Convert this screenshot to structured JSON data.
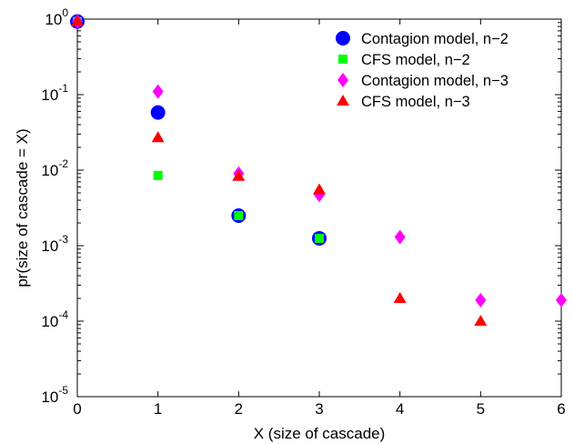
{
  "chart_data": {
    "type": "scatter",
    "title": "",
    "xlabel": "X (size of cascade)",
    "ylabel": "pr(size of cascade = X)",
    "xlim": [
      0,
      6
    ],
    "ylim": [
      1e-05,
      1
    ],
    "yscale": "log",
    "grid": false,
    "legend_position": "top-right",
    "x_ticks": [
      0,
      1,
      2,
      3,
      4,
      5,
      6
    ],
    "y_ticks": [
      {
        "base": "10",
        "exp": "0",
        "value": 1
      },
      {
        "base": "10",
        "exp": "-1",
        "value": 0.1
      },
      {
        "base": "10",
        "exp": "-2",
        "value": 0.01
      },
      {
        "base": "10",
        "exp": "-3",
        "value": 0.001
      },
      {
        "base": "10",
        "exp": "-4",
        "value": 0.0001
      },
      {
        "base": "10",
        "exp": "-5",
        "value": 1e-05
      }
    ],
    "series": [
      {
        "name": "Contagion model, n−2",
        "marker": "circle",
        "color": "#0000ff",
        "points": [
          [
            0,
            0.93
          ],
          [
            1,
            0.058
          ],
          [
            2,
            0.0025
          ],
          [
            3,
            0.00125
          ]
        ]
      },
      {
        "name": "CFS model, n−2",
        "marker": "square",
        "color": "#00ff00",
        "points": [
          [
            0,
            0.93
          ],
          [
            1,
            0.0085
          ],
          [
            2,
            0.0025
          ],
          [
            3,
            0.00125
          ]
        ]
      },
      {
        "name": "Contagion model, n−3",
        "marker": "diamond",
        "color": "#ff00ff",
        "points": [
          [
            0,
            0.93
          ],
          [
            1,
            0.11
          ],
          [
            2,
            0.009
          ],
          [
            3,
            0.0047
          ],
          [
            4,
            0.0013
          ],
          [
            5,
            0.00019
          ],
          [
            6,
            0.00019
          ]
        ]
      },
      {
        "name": "CFS model, n−3",
        "marker": "triangle",
        "color": "#ff0000",
        "points": [
          [
            0,
            0.93
          ],
          [
            1,
            0.027
          ],
          [
            2,
            0.0083
          ],
          [
            3,
            0.0055
          ],
          [
            4,
            0.0002
          ],
          [
            5,
            0.0001
          ]
        ]
      }
    ]
  }
}
